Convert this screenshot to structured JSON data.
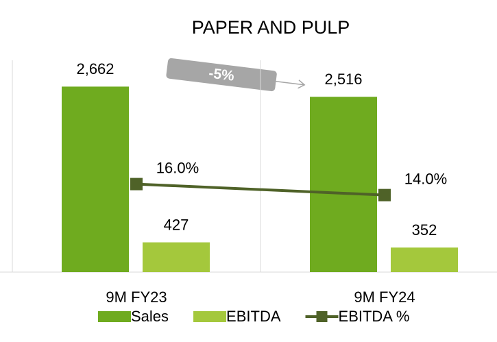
{
  "chart_data": {
    "type": "bar",
    "title": "PAPER AND PULP",
    "categories": [
      "9M FY23",
      "9M FY24"
    ],
    "series": [
      {
        "name": "Sales",
        "color": "#6fab1f",
        "values": [
          2662,
          2516
        ],
        "value_labels": [
          "2,662",
          "2,516"
        ]
      },
      {
        "name": "EBITDA",
        "color": "#a4c83c",
        "values": [
          427,
          352
        ]
      },
      {
        "name": "EBITDA %",
        "type": "line",
        "axis": "y2",
        "color": "#4f6228",
        "values": [
          16.0,
          14.0
        ],
        "value_labels": [
          "16.0%",
          "14.0%"
        ]
      }
    ],
    "ylim": [
      0,
      3000
    ],
    "y2lim": [
      0,
      38
    ],
    "annotation": "-5%",
    "legend": "bottom"
  }
}
